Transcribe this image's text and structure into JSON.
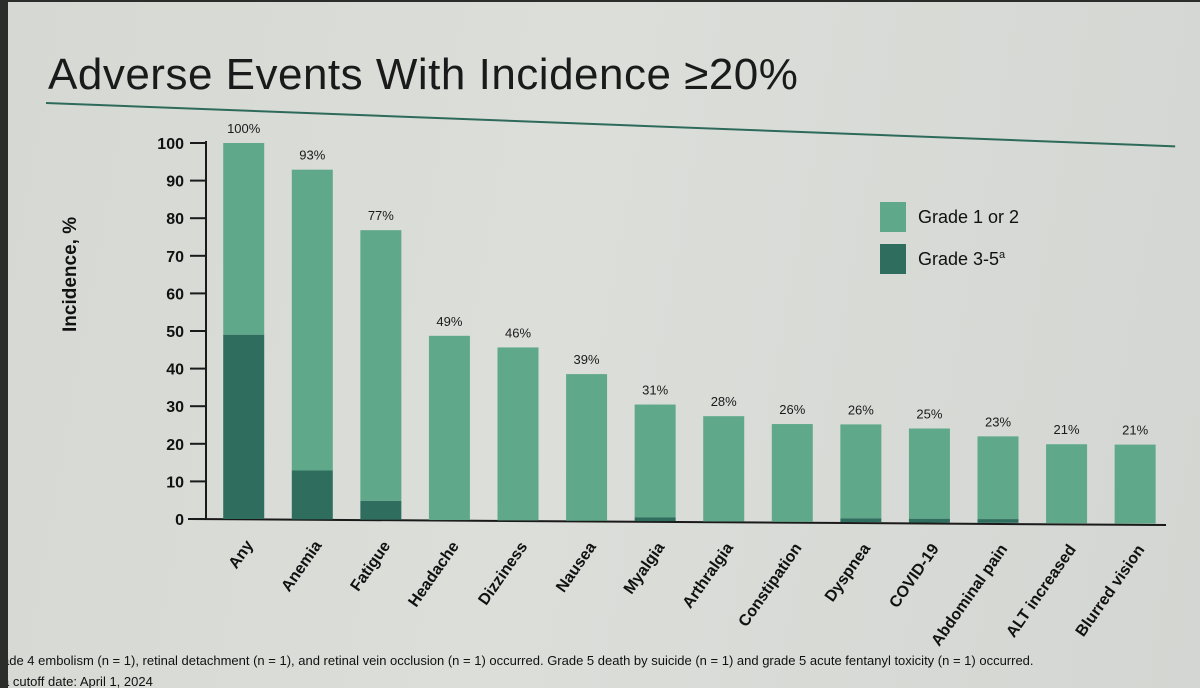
{
  "slide": {
    "title": "Adverse Events With Incidence ≥20%",
    "footnote": "ade 4 embolism (n = 1), retinal detachment (n = 1), and retinal vein occlusion (n = 1) occurred. Grade 5 death by suicide (n = 1) and grade 5 acute fentanyl toxicity (n = 1) occurred.",
    "footnote2": "a cutoff date: April 1, 2024"
  },
  "legend": {
    "grade12": "Grade 1 or 2",
    "grade35": "Grade 3-5",
    "grade35_sup": "a"
  },
  "colors": {
    "grade12": "#5fa98a",
    "grade35": "#2f6e5e"
  },
  "chart_data": {
    "type": "bar",
    "stacked": true,
    "title": "Adverse Events With Incidence ≥20%",
    "xlabel": "",
    "ylabel": "Incidence, %",
    "ylim": [
      0,
      100
    ],
    "yticks": [
      0,
      10,
      20,
      30,
      40,
      50,
      60,
      70,
      80,
      90,
      100
    ],
    "categories": [
      "Any",
      "Anemia",
      "Fatigue",
      "Headache",
      "Dizziness",
      "Nausea",
      "Myalgia",
      "Arthralgia",
      "Constipation",
      "Dyspnea",
      "COVID-19",
      "Abdominal pain",
      "ALT increased",
      "Blurred vision"
    ],
    "series": [
      {
        "name": "Grade 3-5",
        "values": [
          49,
          13,
          5,
          0,
          0,
          0,
          1,
          0,
          0,
          1,
          1,
          1,
          0,
          0
        ]
      },
      {
        "name": "Grade 1 or 2",
        "values": [
          51,
          80,
          72,
          49,
          46,
          39,
          30,
          28,
          26,
          25,
          24,
          22,
          21,
          21
        ]
      }
    ],
    "data_labels": [
      "100%",
      "93%",
      "77%",
      "49%",
      "46%",
      "39%",
      "31%",
      "28%",
      "26%",
      "26%",
      "25%",
      "23%",
      "21%",
      "21%"
    ],
    "grid": false,
    "legend_position": "top-right"
  }
}
